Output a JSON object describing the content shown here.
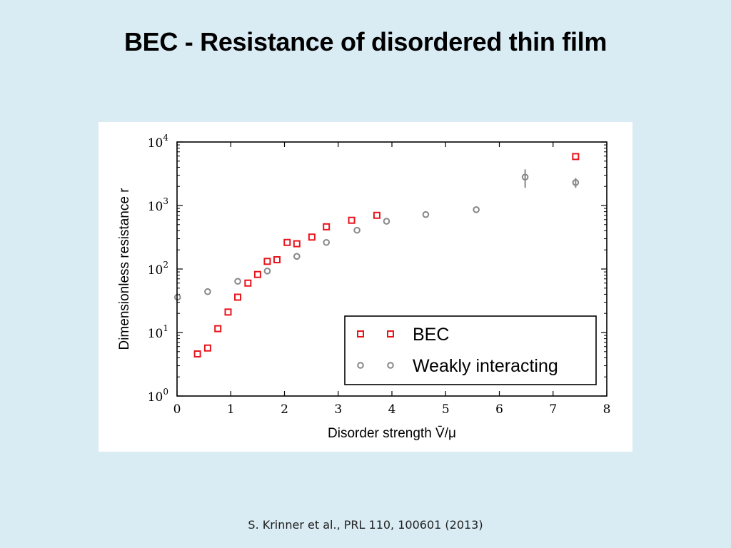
{
  "slide": {
    "title": "BEC - Resistance of disordered thin film",
    "citation": "S. Krinner et al., PRL 110, 100601 (2013)"
  },
  "chart_data": {
    "type": "scatter",
    "xlabel": "Disorder strength V̄/μ",
    "ylabel": "Dimensionless resistance r",
    "xlim": [
      0,
      8
    ],
    "ylim": [
      1,
      10000
    ],
    "yscale": "log",
    "x_ticks": [
      "0",
      "1",
      "2",
      "3",
      "4",
      "5",
      "6",
      "7",
      "8"
    ],
    "y_ticks": [
      {
        "base": "10",
        "exp": "0"
      },
      {
        "base": "10",
        "exp": "1"
      },
      {
        "base": "10",
        "exp": "2"
      },
      {
        "base": "10",
        "exp": "3"
      },
      {
        "base": "10",
        "exp": "4"
      }
    ],
    "legend_position": "bottom-right",
    "grid": false,
    "series": [
      {
        "name": "BEC",
        "marker": "square",
        "color": "#e8141c",
        "points": [
          {
            "x": 0.38,
            "y": 4.6
          },
          {
            "x": 0.57,
            "y": 5.7
          },
          {
            "x": 0.76,
            "y": 11.5
          },
          {
            "x": 0.95,
            "y": 21
          },
          {
            "x": 1.13,
            "y": 36
          },
          {
            "x": 1.32,
            "y": 60
          },
          {
            "x": 1.5,
            "y": 82
          },
          {
            "x": 1.68,
            "y": 132
          },
          {
            "x": 1.86,
            "y": 140
          },
          {
            "x": 2.05,
            "y": 262
          },
          {
            "x": 2.23,
            "y": 250
          },
          {
            "x": 2.51,
            "y": 318
          },
          {
            "x": 2.78,
            "y": 462
          },
          {
            "x": 3.25,
            "y": 585
          },
          {
            "x": 3.72,
            "y": 700
          },
          {
            "x": 7.42,
            "y": 5900
          }
        ]
      },
      {
        "name": "Weakly interacting",
        "marker": "circle",
        "color": "#888888",
        "points": [
          {
            "x": 0.01,
            "y": 36
          },
          {
            "x": 0.57,
            "y": 44
          },
          {
            "x": 1.13,
            "y": 64
          },
          {
            "x": 1.68,
            "y": 93
          },
          {
            "x": 2.23,
            "y": 158
          },
          {
            "x": 2.78,
            "y": 262
          },
          {
            "x": 3.35,
            "y": 408
          },
          {
            "x": 3.9,
            "y": 565
          },
          {
            "x": 4.63,
            "y": 720
          },
          {
            "x": 5.57,
            "y": 860
          },
          {
            "x": 6.48,
            "y": 2800,
            "err_lo": 1900,
            "err_hi": 3700
          },
          {
            "x": 7.42,
            "y": 2300,
            "err_lo": 1900,
            "err_hi": 2700
          }
        ]
      }
    ]
  }
}
